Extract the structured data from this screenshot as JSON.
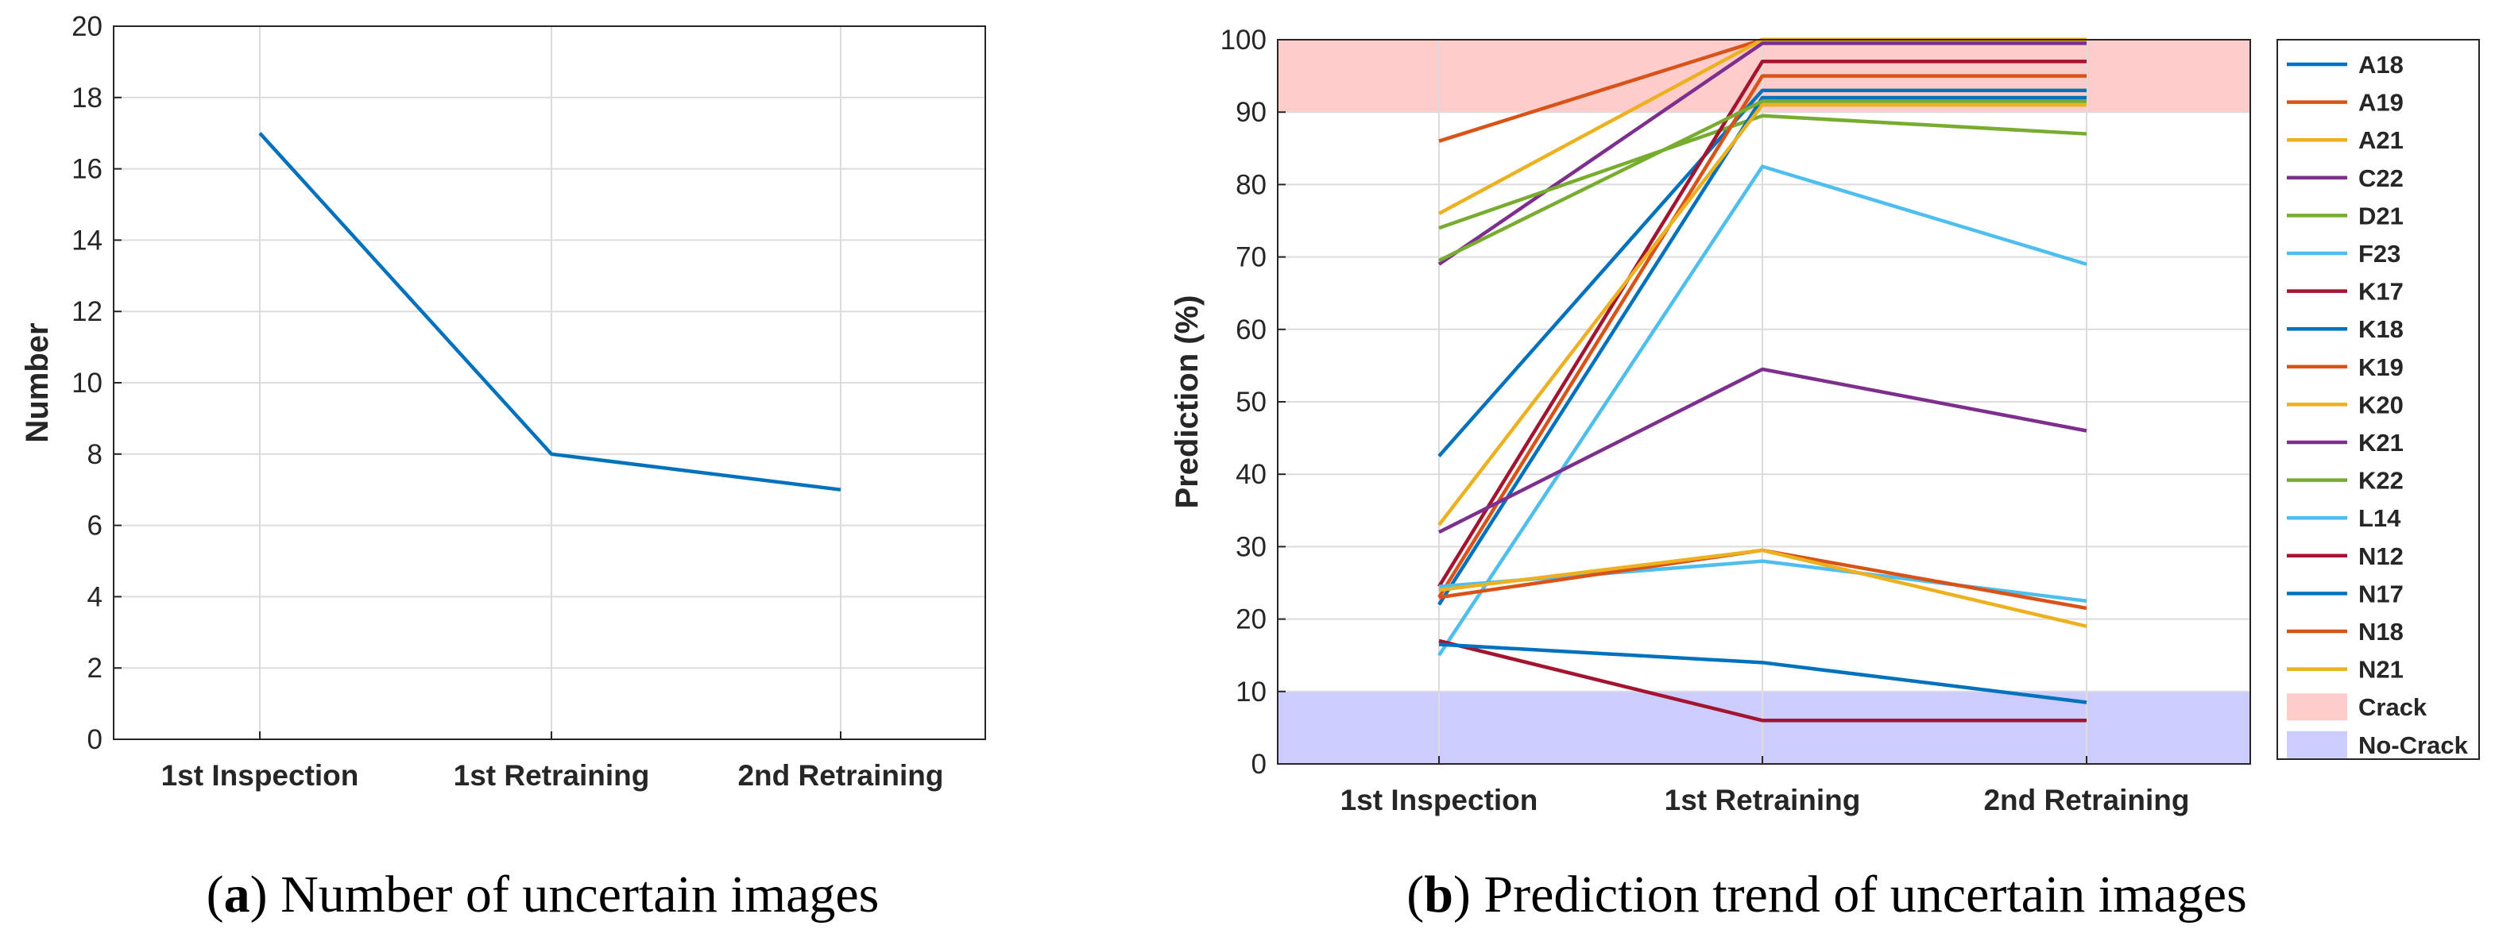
{
  "chart_data": [
    {
      "type": "line",
      "panel_label": "a",
      "caption": "Number of uncertain images",
      "title": "",
      "xlabel": "",
      "ylabel": "Number",
      "categories": [
        "1st Inspection",
        "1st Retraining",
        "2nd Retraining"
      ],
      "ylim": [
        0,
        20
      ],
      "yticks": [
        0,
        2,
        4,
        6,
        8,
        10,
        12,
        14,
        16,
        18,
        20
      ],
      "grid": true,
      "series": [
        {
          "name": "Uncertain images",
          "color": "#0072BD",
          "values": [
            17,
            8,
            7
          ]
        }
      ]
    },
    {
      "type": "line",
      "panel_label": "b",
      "caption": "Prediction trend of uncertain images",
      "title": "",
      "xlabel": "",
      "ylabel": "Prediction (%)",
      "categories": [
        "1st Inspection",
        "1st Retraining",
        "2nd Retraining"
      ],
      "ylim": [
        0,
        100
      ],
      "yticks": [
        0,
        10,
        20,
        30,
        40,
        50,
        60,
        70,
        80,
        90,
        100
      ],
      "grid": true,
      "legend_position": "right",
      "bands": [
        {
          "name": "Crack",
          "from": 90,
          "to": 100,
          "color": "#ffcccc"
        },
        {
          "name": "No-Crack",
          "from": 0,
          "to": 10,
          "color": "#ccccff"
        }
      ],
      "series": [
        {
          "name": "A18",
          "color": "#0072BD",
          "values": [
            42.5,
            93,
            93
          ]
        },
        {
          "name": "A19",
          "color": "#D95319",
          "values": [
            86,
            100,
            100
          ]
        },
        {
          "name": "A21",
          "color": "#EDB120",
          "values": [
            76,
            100,
            100
          ]
        },
        {
          "name": "C22",
          "color": "#7E2F8E",
          "values": [
            69,
            99.5,
            99.5
          ]
        },
        {
          "name": "D21",
          "color": "#77AC30",
          "values": [
            74,
            89.5,
            87
          ]
        },
        {
          "name": "F23",
          "color": "#4DBEEE",
          "values": [
            15,
            82.5,
            69
          ]
        },
        {
          "name": "K17",
          "color": "#A2142F",
          "values": [
            24.5,
            97,
            97
          ]
        },
        {
          "name": "K18",
          "color": "#0072BD",
          "values": [
            22,
            92,
            92
          ]
        },
        {
          "name": "K19",
          "color": "#D95319",
          "values": [
            23,
            95,
            95
          ]
        },
        {
          "name": "K20",
          "color": "#EDB120",
          "values": [
            33,
            91,
            91
          ]
        },
        {
          "name": "K21",
          "color": "#7E2F8E",
          "values": [
            32,
            54.5,
            46
          ]
        },
        {
          "name": "K22",
          "color": "#77AC30",
          "values": [
            69.5,
            91.5,
            91.5
          ]
        },
        {
          "name": "L14",
          "color": "#4DBEEE",
          "values": [
            24.5,
            28,
            22.5
          ]
        },
        {
          "name": "N12",
          "color": "#A2142F",
          "values": [
            17,
            6,
            6
          ]
        },
        {
          "name": "N17",
          "color": "#0072BD",
          "values": [
            16.5,
            14,
            8.5
          ]
        },
        {
          "name": "N18",
          "color": "#D95319",
          "values": [
            23,
            29.5,
            21.5
          ]
        },
        {
          "name": "N21",
          "color": "#EDB120",
          "values": [
            24,
            29.5,
            19
          ]
        }
      ]
    }
  ]
}
